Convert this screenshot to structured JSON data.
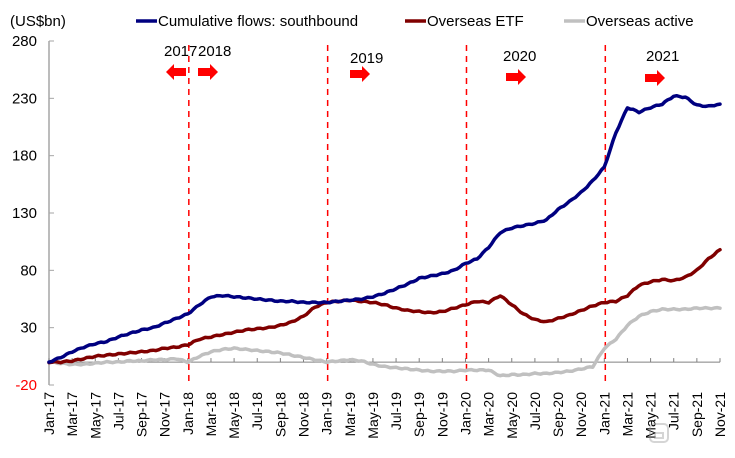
{
  "chart_data": {
    "type": "line",
    "title": "",
    "ylabel": "(US$bn)",
    "xlabel": "",
    "ylim": [
      -20,
      280
    ],
    "yticks": [
      280,
      230,
      180,
      130,
      80,
      30,
      -20
    ],
    "ytick_colors": {
      "-20": "#ff0000"
    },
    "grid": false,
    "legend_position": "top",
    "x_tick_labels": [
      "Jan-17",
      "Mar-17",
      "May-17",
      "Jul-17",
      "Sep-17",
      "Nov-17",
      "Jan-18",
      "Mar-18",
      "May-18",
      "Jul-18",
      "Sep-18",
      "Nov-18",
      "Jan-19",
      "Mar-19",
      "May-19",
      "Jul-19",
      "Sep-19",
      "Nov-19",
      "Jan-20",
      "Mar-20",
      "May-20",
      "Jul-20",
      "Sep-20",
      "Nov-20",
      "Jan-21",
      "Mar-21",
      "May-21",
      "Jul-21",
      "Sep-21",
      "Nov-21"
    ],
    "x_months": [
      "Jan-17",
      "Feb-17",
      "Mar-17",
      "Apr-17",
      "May-17",
      "Jun-17",
      "Jul-17",
      "Aug-17",
      "Sep-17",
      "Oct-17",
      "Nov-17",
      "Dec-17",
      "Jan-18",
      "Feb-18",
      "Mar-18",
      "Apr-18",
      "May-18",
      "Jun-18",
      "Jul-18",
      "Aug-18",
      "Sep-18",
      "Oct-18",
      "Nov-18",
      "Dec-18",
      "Jan-19",
      "Feb-19",
      "Mar-19",
      "Apr-19",
      "May-19",
      "Jun-19",
      "Jul-19",
      "Aug-19",
      "Sep-19",
      "Oct-19",
      "Nov-19",
      "Dec-19",
      "Jan-20",
      "Feb-20",
      "Mar-20",
      "Apr-20",
      "May-20",
      "Jun-20",
      "Jul-20",
      "Aug-20",
      "Sep-20",
      "Oct-20",
      "Nov-20",
      "Dec-20",
      "Jan-21",
      "Feb-21",
      "Mar-21",
      "Apr-21",
      "May-21",
      "Jun-21",
      "Jul-21",
      "Aug-21",
      "Sep-21",
      "Oct-21",
      "Nov-21"
    ],
    "series": [
      {
        "name": "Cumulative flows: southbound",
        "color": "#000080",
        "values": [
          0,
          4,
          9,
          13,
          16,
          18,
          22,
          25,
          28,
          30,
          34,
          38,
          42,
          50,
          57,
          58,
          57,
          56,
          55,
          54,
          53,
          53,
          52,
          52,
          52,
          53,
          54,
          55,
          57,
          60,
          64,
          68,
          73,
          75,
          77,
          80,
          86,
          90,
          100,
          113,
          117,
          119,
          121,
          124,
          133,
          140,
          148,
          158,
          170,
          200,
          222,
          218,
          222,
          225,
          232,
          231,
          224,
          223,
          225
        ],
        "smooth_wiggle": true
      },
      {
        "name": "Overseas ETF",
        "color": "#800000",
        "values": [
          0,
          0,
          1,
          3,
          5,
          6,
          7,
          8,
          9,
          10,
          12,
          13,
          15,
          20,
          22,
          24,
          26,
          28,
          29,
          30,
          32,
          35,
          40,
          48,
          52,
          53,
          54,
          53,
          52,
          50,
          47,
          45,
          44,
          43,
          44,
          47,
          50,
          53,
          52,
          58,
          50,
          42,
          37,
          35,
          38,
          41,
          45,
          49,
          52,
          53,
          58,
          67,
          70,
          72,
          71,
          74,
          80,
          90,
          98
        ]
      },
      {
        "name": "Overseas active",
        "color": "#c0c0c0",
        "values": [
          0,
          -1,
          -2,
          -2,
          -1,
          0,
          0,
          1,
          1,
          2,
          2,
          3,
          0,
          5,
          9,
          11,
          12,
          11,
          10,
          9,
          8,
          6,
          4,
          2,
          0,
          1,
          2,
          1,
          -2,
          -4,
          -5,
          -6,
          -7,
          -8,
          -8,
          -8,
          -7,
          -7,
          -7,
          -12,
          -11,
          -11,
          -10,
          -10,
          -9,
          -8,
          -6,
          -4,
          12,
          20,
          32,
          40,
          44,
          46,
          46,
          46,
          47,
          47,
          47
        ]
      }
    ],
    "vertical_lines": [
      {
        "at": "Jan-18",
        "color": "#ff0000",
        "style": "dashed"
      },
      {
        "at": "Jan-19",
        "color": "#ff0000",
        "style": "dashed"
      },
      {
        "at": "Jan-20",
        "color": "#ff0000",
        "style": "dashed"
      },
      {
        "at": "Jan-21",
        "color": "#ff0000",
        "style": "dashed"
      }
    ],
    "annotations": [
      {
        "text": "2017",
        "arrow": "left",
        "near": "Jan-18"
      },
      {
        "text": "2018",
        "arrow": "right",
        "near": "Jan-18"
      },
      {
        "text": "2019",
        "arrow": "right",
        "near": "Jan-19"
      },
      {
        "text": "2020",
        "arrow": "right",
        "near": "Jan-20"
      },
      {
        "text": "2021",
        "arrow": "right",
        "near": "Jan-21"
      }
    ]
  }
}
